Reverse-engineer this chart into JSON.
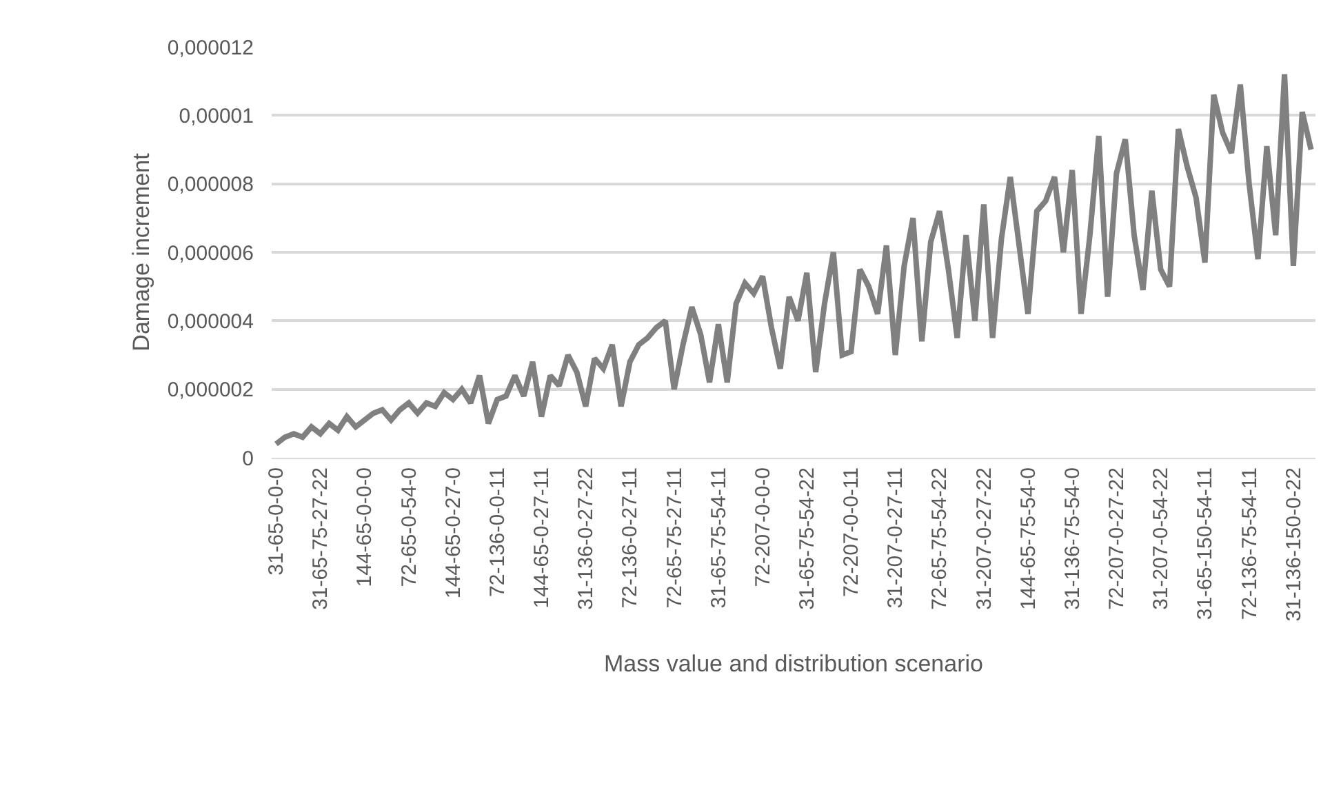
{
  "chart_data": {
    "type": "line",
    "xlabel": "Mass value and distribution scenario",
    "ylabel": "Damage increment",
    "categories": [
      "31-65-0-0-0",
      null,
      null,
      null,
      null,
      "31-65-75-27-22",
      null,
      null,
      null,
      null,
      "144-65-0-0-0",
      null,
      null,
      null,
      null,
      "72-65-0-54-0",
      null,
      null,
      null,
      null,
      "144-65-0-27-0",
      null,
      null,
      null,
      null,
      "72-136-0-0-11",
      null,
      null,
      null,
      null,
      "144-65-0-27-11",
      null,
      null,
      null,
      null,
      "31-136-0-27-22",
      null,
      null,
      null,
      null,
      "72-136-0-27-11",
      null,
      null,
      null,
      null,
      "72-65-75-27-11",
      null,
      null,
      null,
      null,
      "31-65-75-54-11",
      null,
      null,
      null,
      null,
      "72-207-0-0-0",
      null,
      null,
      null,
      null,
      "31-65-75-54-22",
      null,
      null,
      null,
      null,
      "72-207-0-0-11",
      null,
      null,
      null,
      null,
      "31-207-0-27-11",
      null,
      null,
      null,
      null,
      "72-65-75-54-22",
      null,
      null,
      null,
      null,
      "31-207-0-27-22",
      null,
      null,
      null,
      null,
      "144-65-75-54-0",
      null,
      null,
      null,
      null,
      "31-136-75-54-0",
      null,
      null,
      null,
      null,
      "72-207-0-27-22",
      null,
      null,
      null,
      null,
      "31-207-0-54-22",
      null,
      null,
      null,
      null,
      "31-65-150-54-11",
      null,
      null,
      null,
      null,
      "72-136-75-54-11",
      null,
      null,
      null,
      null,
      "31-136-150-0-22",
      null,
      null
    ],
    "series": [
      {
        "color": "#808080",
        "values": [
          4e-07,
          6e-07,
          7e-07,
          6e-07,
          9e-07,
          7e-07,
          1e-06,
          8e-07,
          1.2e-06,
          9e-07,
          1.1e-06,
          1.3e-06,
          1.4e-06,
          1.1e-06,
          1.4e-06,
          1.6e-06,
          1.3e-06,
          1.6e-06,
          1.5e-06,
          1.9e-06,
          1.7e-06,
          2e-06,
          1.6e-06,
          2.4e-06,
          1e-06,
          1.7e-06,
          1.8e-06,
          2.4e-06,
          1.8e-06,
          2.8e-06,
          1.2e-06,
          2.4e-06,
          2.1e-06,
          3e-06,
          2.5e-06,
          1.5e-06,
          2.9e-06,
          2.6e-06,
          3.3e-06,
          1.5e-06,
          2.8e-06,
          3.3e-06,
          3.5e-06,
          3.8e-06,
          4e-06,
          2e-06,
          3.3e-06,
          4.4e-06,
          3.6e-06,
          2.2e-06,
          3.9e-06,
          2.2e-06,
          4.5e-06,
          5.1e-06,
          4.8e-06,
          5.3e-06,
          3.8e-06,
          2.6e-06,
          4.7e-06,
          4e-06,
          5.4e-06,
          2.5e-06,
          4.5e-06,
          6e-06,
          3e-06,
          3.1e-06,
          5.5e-06,
          5e-06,
          4.2e-06,
          6.2e-06,
          3e-06,
          5.6e-06,
          7e-06,
          3.4e-06,
          6.3e-06,
          7.2e-06,
          5.5e-06,
          3.5e-06,
          6.5e-06,
          4e-06,
          7.4e-06,
          3.5e-06,
          6.4e-06,
          8.2e-06,
          6.2e-06,
          4.2e-06,
          7.2e-06,
          7.5e-06,
          8.2e-06,
          6e-06,
          8.4e-06,
          4.2e-06,
          6.5e-06,
          9.4e-06,
          4.7e-06,
          8.3e-06,
          9.3e-06,
          6.5e-06,
          4.9e-06,
          7.8e-06,
          5.5e-06,
          5e-06,
          9.6e-06,
          8.5e-06,
          7.6e-06,
          5.7e-06,
          1.06e-05,
          9.5e-06,
          8.9e-06,
          1.09e-05,
          8e-06,
          5.8e-06,
          9.1e-06,
          6.5e-06,
          1.12e-05,
          5.6e-06,
          1.01e-05,
          9e-06
        ]
      }
    ],
    "ylim": [
      0,
      1.2e-05
    ],
    "yticks": [
      0,
      {
        "value": 2e-06,
        "label": "0,000002"
      },
      {
        "value": 4e-06,
        "label": "0,000004"
      },
      {
        "value": 6e-06,
        "label": "0,000006"
      },
      {
        "value": 8e-06,
        "label": "0,000008"
      },
      {
        "value": 1e-05,
        "label": "0,00001"
      },
      {
        "value": 1.2e-05,
        "label": "0,000012"
      }
    ],
    "grid": "y",
    "marker": "none",
    "line_style": "solid"
  }
}
